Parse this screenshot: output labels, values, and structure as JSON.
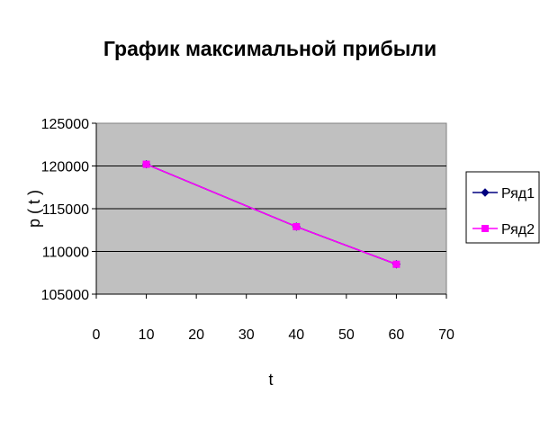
{
  "chart_data": {
    "type": "line",
    "title": "График максимальной прибыли",
    "xlabel": "t",
    "ylabel": "p ( t )",
    "xlim": [
      0,
      70
    ],
    "ylim": [
      105000,
      125000
    ],
    "x_ticks": [
      "0",
      "10",
      "20",
      "30",
      "40",
      "50",
      "60",
      "70"
    ],
    "y_ticks": [
      "105000",
      "110000",
      "115000",
      "120000",
      "125000"
    ],
    "grid": true,
    "legend_position": "right",
    "plot_background": "#c0c0c0",
    "series": [
      {
        "name": "Ряд1",
        "color": "#000080",
        "marker": "diamond",
        "x": [
          10,
          40,
          60
        ],
        "y": [
          120200,
          112900,
          108500
        ]
      },
      {
        "name": "Ряд2",
        "color": "#ff00ff",
        "marker": "square",
        "x": [
          10,
          40,
          60
        ],
        "y": [
          120200,
          112900,
          108500
        ]
      }
    ]
  }
}
